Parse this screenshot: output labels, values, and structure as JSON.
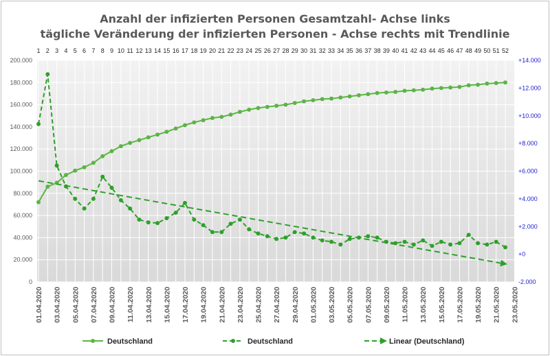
{
  "chart_data": {
    "type": "line",
    "title_line1": "Anzahl der infizierten Personen Gesamtzahl- Achse links",
    "title_line2": "tägliche Veränderung der infizierten Personen - Achse rechts mit Trendlinie",
    "x_top": [
      "1",
      "2",
      "3",
      "4",
      "5",
      "6",
      "7",
      "8",
      "9",
      "10",
      "11",
      "12",
      "13",
      "14",
      "15",
      "16",
      "17",
      "18",
      "19",
      "20",
      "21",
      "22",
      "23",
      "24",
      "25",
      "26",
      "27",
      "28",
      "29",
      "30",
      "31",
      "32",
      "33",
      "34",
      "35",
      "36",
      "37",
      "38",
      "39",
      "40",
      "41",
      "42",
      "43",
      "44",
      "45",
      "46",
      "47",
      "48",
      "49",
      "50",
      "51",
      "52"
    ],
    "x_bottom": [
      "01.04.2020",
      "03.04.2020",
      "05.04.2020",
      "07.04.2020",
      "09.04.2020",
      "11.04.2020",
      "13.04.2020",
      "15.04.2020",
      "17.04.2020",
      "19.04.2020",
      "21.04.2020",
      "23.04.2020",
      "25.04.2020",
      "27.04.2020",
      "29.04.2020",
      "01.05.2020",
      "03.05.2020",
      "05.05.2020",
      "07.05.2020",
      "09.05.2020",
      "11.05.2020",
      "13.05.2020",
      "15.05.2020",
      "17.05.2020",
      "19.05.2020",
      "21.05.2020",
      "23.05.2020"
    ],
    "y_left_ticks": [
      "0",
      "20.000",
      "40.000",
      "60.000",
      "80.000",
      "100.000",
      "120.000",
      "140.000",
      "160.000",
      "180.000",
      "200.000"
    ],
    "y_left_range": [
      0,
      200000
    ],
    "y_right_ticks": [
      "-2.000",
      "+0",
      "+2.000",
      "+4.000",
      "+6.000",
      "+8.000",
      "+10.000",
      "+12.000",
      "+14.000"
    ],
    "y_right_range": [
      -2000,
      14000
    ],
    "grid": true,
    "legend_position": "bottom",
    "series": [
      {
        "name": "Deutschland",
        "axis": "left",
        "style": "solid",
        "color": "#5bb544",
        "values": [
          72000,
          86000,
          89500,
          96500,
          100500,
          103500,
          107500,
          113500,
          118000,
          122500,
          125500,
          128000,
          130500,
          133000,
          135500,
          138500,
          141500,
          144000,
          146000,
          148000,
          149000,
          151000,
          153500,
          155500,
          157000,
          158000,
          159000,
          160000,
          161500,
          163000,
          164000,
          165000,
          165500,
          166500,
          167500,
          168500,
          169500,
          170500,
          171000,
          171500,
          172500,
          173000,
          173500,
          174500,
          175000,
          175500,
          176000,
          177500,
          178000,
          179000,
          179500,
          180000
        ]
      },
      {
        "name": "Deutschland",
        "axis": "right",
        "style": "dashed",
        "color": "#2ea02a",
        "values": [
          9400,
          13000,
          6400,
          4900,
          4000,
          3300,
          4000,
          5600,
          4800,
          3900,
          3300,
          2500,
          2300,
          2250,
          2600,
          3000,
          3700,
          2500,
          2100,
          1600,
          1600,
          2200,
          2500,
          1800,
          1500,
          1300,
          1100,
          1200,
          1600,
          1500,
          1200,
          1000,
          900,
          700,
          1100,
          1200,
          1300,
          1200,
          900,
          800,
          900,
          700,
          1000,
          600,
          900,
          700,
          800,
          1400,
          800,
          700,
          900,
          500
        ]
      },
      {
        "name": "Linear (Deutschland)",
        "axis": "right",
        "style": "trend",
        "color": "#2ea02a",
        "values": [
          5300,
          -700
        ]
      }
    ],
    "legend": [
      {
        "label": "Deutschland",
        "style": "solid"
      },
      {
        "label": "Deutschland",
        "style": "dashed"
      },
      {
        "label": "Linear (Deutschland)",
        "style": "trend"
      }
    ]
  }
}
